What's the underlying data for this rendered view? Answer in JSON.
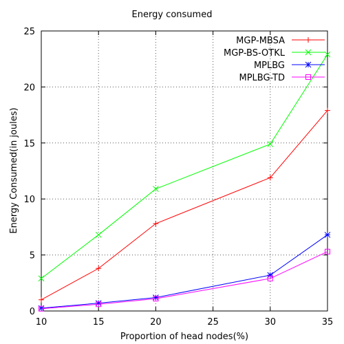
{
  "chart_data": {
    "type": "line",
    "title": "Energy consumed",
    "xlabel": "Proportion of head nodes(%)",
    "ylabel": "Energy Consumed(in joules)",
    "xlim": [
      10,
      35
    ],
    "ylim": [
      0,
      25
    ],
    "xticks": [
      10,
      15,
      20,
      25,
      30,
      35
    ],
    "yticks": [
      0,
      5,
      10,
      15,
      20,
      25
    ],
    "grid": true,
    "legend_position": "top-right",
    "x": [
      10,
      15,
      20,
      30,
      35
    ],
    "series": [
      {
        "name": "MGP-MBSA",
        "color": "#ff0000",
        "marker": "plus",
        "values": [
          1.0,
          3.8,
          7.8,
          11.9,
          17.9
        ]
      },
      {
        "name": "MGP-BS-OTKL",
        "color": "#00ff00",
        "marker": "cross",
        "values": [
          2.9,
          6.8,
          10.9,
          14.9,
          22.9
        ]
      },
      {
        "name": "MPLBG",
        "color": "#0000ff",
        "marker": "star",
        "values": [
          0.25,
          0.7,
          1.2,
          3.2,
          6.8
        ]
      },
      {
        "name": "MPLBG-TD",
        "color": "#ff00ff",
        "marker": "square",
        "values": [
          0.2,
          0.6,
          1.1,
          2.9,
          5.3
        ]
      }
    ]
  }
}
